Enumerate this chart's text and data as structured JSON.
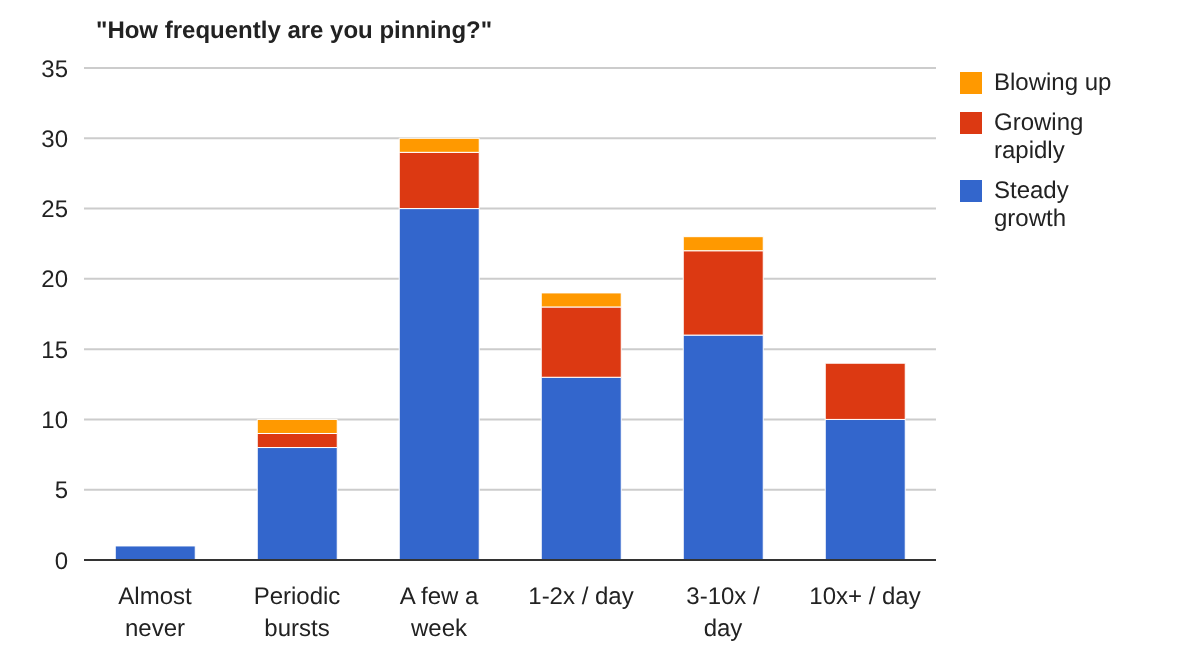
{
  "chart_data": {
    "type": "bar",
    "title": "\"How frequently are you pinning?\"",
    "categories": [
      "Almost never",
      "Periodic bursts",
      "A few a week",
      "1-2x / day",
      "3-10x / day",
      "10x+ / day"
    ],
    "series": [
      {
        "name": "Steady growth",
        "color": "#3366cc",
        "values": [
          1,
          8,
          25,
          13,
          16,
          10
        ]
      },
      {
        "name": "Growing rapidly",
        "color": "#dc3912",
        "values": [
          0,
          1,
          4,
          5,
          6,
          4
        ]
      },
      {
        "name": "Blowing up",
        "color": "#ff9900",
        "values": [
          0,
          1,
          1,
          1,
          1,
          0
        ]
      }
    ],
    "stacked": true,
    "ylim": [
      0,
      35
    ],
    "yticks": [
      0,
      5,
      10,
      15,
      20,
      25,
      30,
      35
    ],
    "grid": "y",
    "legend": "top right"
  }
}
